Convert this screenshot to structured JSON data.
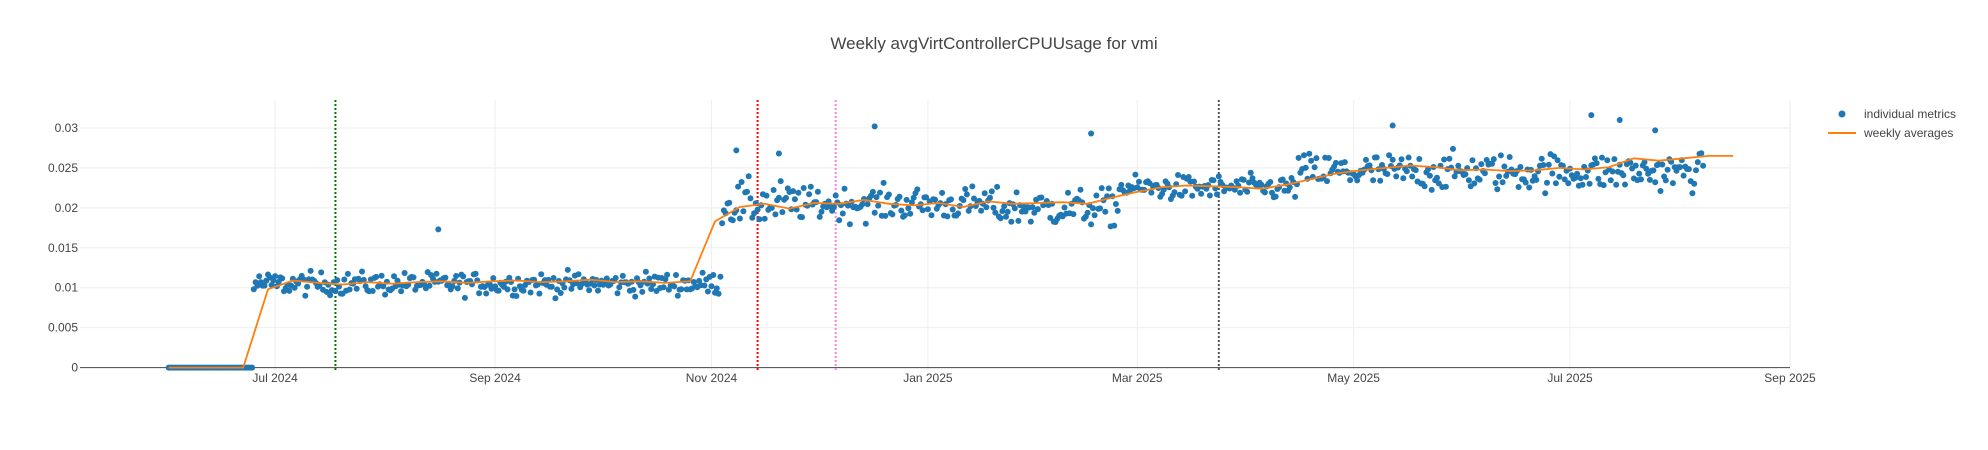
{
  "chart_data": {
    "type": "scatter",
    "title": "Weekly avgVirtControllerCPUUsage for vmi",
    "xlabel": "",
    "ylabel": "",
    "x_range": [
      "2024-05-07",
      "2025-09-01"
    ],
    "y_range": [
      -0.0003,
      0.0335
    ],
    "x_ticks": [
      {
        "date": "2024-07-01",
        "label": "Jul 2024"
      },
      {
        "date": "2024-09-01",
        "label": "Sep 2024"
      },
      {
        "date": "2024-11-01",
        "label": "Nov 2024"
      },
      {
        "date": "2025-01-01",
        "label": "Jan 2025"
      },
      {
        "date": "2025-03-01",
        "label": "Mar 2025"
      },
      {
        "date": "2025-05-01",
        "label": "May 2025"
      },
      {
        "date": "2025-07-01",
        "label": "Jul 2025"
      },
      {
        "date": "2025-09-01",
        "label": "Sep 2025"
      }
    ],
    "y_ticks": [
      {
        "value": 0,
        "label": "0"
      },
      {
        "value": 0.005,
        "label": "0.005"
      },
      {
        "value": 0.01,
        "label": "0.01"
      },
      {
        "value": 0.015,
        "label": "0.015"
      },
      {
        "value": 0.02,
        "label": "0.02"
      },
      {
        "value": 0.025,
        "label": "0.025"
      },
      {
        "value": 0.03,
        "label": "0.03"
      }
    ],
    "grid": true,
    "legend_position": "top-right",
    "series": [
      {
        "name": "individual metrics",
        "kind": "markers",
        "color": "#1f77b4",
        "segments": [
          {
            "start": "2024-06-01",
            "end": "2024-06-25",
            "level": 0.0,
            "spread": 0.0
          },
          {
            "start": "2024-06-25",
            "end": "2024-11-04",
            "level": 0.0105,
            "spread": 0.0011
          },
          {
            "start": "2024-11-04",
            "end": "2024-11-25",
            "level": 0.0205,
            "spread": 0.0022
          },
          {
            "start": "2024-11-25",
            "end": "2025-01-20",
            "level": 0.0205,
            "spread": 0.0016
          },
          {
            "start": "2025-01-20",
            "end": "2025-02-24",
            "level": 0.02,
            "spread": 0.0018
          },
          {
            "start": "2025-02-24",
            "end": "2025-04-15",
            "level": 0.0225,
            "spread": 0.0012
          },
          {
            "start": "2025-04-15",
            "end": "2025-08-08",
            "level": 0.0245,
            "spread": 0.0018
          }
        ],
        "outliers": [
          {
            "date": "2024-08-16",
            "value": 0.0173
          },
          {
            "date": "2024-11-08",
            "value": 0.0272
          },
          {
            "date": "2024-11-20",
            "value": 0.0268
          },
          {
            "date": "2024-12-17",
            "value": 0.0302
          },
          {
            "date": "2025-02-16",
            "value": 0.0293
          },
          {
            "date": "2025-05-12",
            "value": 0.0303
          },
          {
            "date": "2025-07-07",
            "value": 0.0316
          },
          {
            "date": "2025-07-15",
            "value": 0.031
          },
          {
            "date": "2025-07-25",
            "value": 0.0297
          }
        ]
      },
      {
        "name": "weekly averages",
        "kind": "line",
        "color": "#ff7f0e",
        "points": [
          [
            "2024-06-01",
            0.0
          ],
          [
            "2024-06-08",
            0.0
          ],
          [
            "2024-06-15",
            0.0
          ],
          [
            "2024-06-22",
            0.0
          ],
          [
            "2024-06-29",
            0.0098
          ],
          [
            "2024-07-06",
            0.0109
          ],
          [
            "2024-07-13",
            0.0106
          ],
          [
            "2024-07-20",
            0.0104
          ],
          [
            "2024-07-27",
            0.0107
          ],
          [
            "2024-08-03",
            0.0105
          ],
          [
            "2024-08-10",
            0.0107
          ],
          [
            "2024-08-17",
            0.0108
          ],
          [
            "2024-08-24",
            0.0106
          ],
          [
            "2024-08-31",
            0.0108
          ],
          [
            "2024-09-07",
            0.0109
          ],
          [
            "2024-09-14",
            0.0107
          ],
          [
            "2024-09-21",
            0.0108
          ],
          [
            "2024-09-28",
            0.011
          ],
          [
            "2024-10-05",
            0.0107
          ],
          [
            "2024-10-12",
            0.0108
          ],
          [
            "2024-10-19",
            0.0106
          ],
          [
            "2024-10-26",
            0.0108
          ],
          [
            "2024-11-02",
            0.0183
          ],
          [
            "2024-11-09",
            0.0201
          ],
          [
            "2024-11-16",
            0.0205
          ],
          [
            "2024-11-23",
            0.0199
          ],
          [
            "2024-11-30",
            0.0206
          ],
          [
            "2024-12-07",
            0.0205
          ],
          [
            "2024-12-14",
            0.021
          ],
          [
            "2024-12-21",
            0.0205
          ],
          [
            "2024-12-28",
            0.0203
          ],
          [
            "2025-01-04",
            0.0206
          ],
          [
            "2025-01-11",
            0.0201
          ],
          [
            "2025-01-18",
            0.0208
          ],
          [
            "2025-01-25",
            0.0205
          ],
          [
            "2025-02-01",
            0.0206
          ],
          [
            "2025-02-08",
            0.0207
          ],
          [
            "2025-02-15",
            0.0205
          ],
          [
            "2025-02-22",
            0.0213
          ],
          [
            "2025-03-01",
            0.022
          ],
          [
            "2025-03-08",
            0.0226
          ],
          [
            "2025-03-15",
            0.0228
          ],
          [
            "2025-03-22",
            0.0227
          ],
          [
            "2025-03-29",
            0.0226
          ],
          [
            "2025-04-05",
            0.0224
          ],
          [
            "2025-04-12",
            0.0229
          ],
          [
            "2025-04-19",
            0.0236
          ],
          [
            "2025-04-26",
            0.0243
          ],
          [
            "2025-05-03",
            0.0247
          ],
          [
            "2025-05-10",
            0.025
          ],
          [
            "2025-05-17",
            0.0253
          ],
          [
            "2025-05-24",
            0.0251
          ],
          [
            "2025-05-31",
            0.0247
          ],
          [
            "2025-06-07",
            0.0248
          ],
          [
            "2025-06-14",
            0.0246
          ],
          [
            "2025-06-21",
            0.0247
          ],
          [
            "2025-06-28",
            0.025
          ],
          [
            "2025-07-05",
            0.0248
          ],
          [
            "2025-07-12",
            0.0251
          ],
          [
            "2025-07-19",
            0.0262
          ],
          [
            "2025-07-26",
            0.0259
          ],
          [
            "2025-08-02",
            0.0262
          ],
          [
            "2025-08-09",
            0.0265
          ],
          [
            "2025-08-16",
            0.0265
          ]
        ]
      }
    ],
    "vertical_markers": [
      {
        "date": "2024-07-18",
        "color": "#007a00"
      },
      {
        "date": "2024-11-14",
        "color": "#ff0000"
      },
      {
        "date": "2024-12-06",
        "color": "#ee82ee"
      },
      {
        "date": "2025-03-24",
        "color": "#555555"
      }
    ]
  }
}
